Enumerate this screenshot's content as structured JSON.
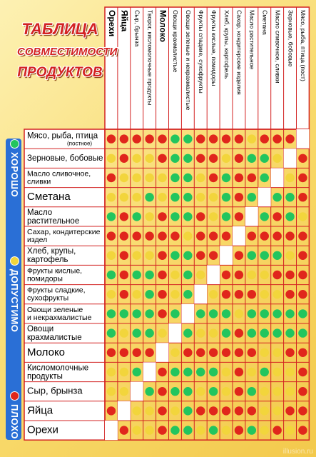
{
  "title_lines": [
    "ТАБЛИЦА",
    "СОВМЕСТИМОСТИ",
    "ПРОДУКТОВ"
  ],
  "legend": [
    {
      "label": "ХОРОШО",
      "color": "#22c55e"
    },
    {
      "label": "ДОПУСТИМО",
      "color": "#f2d53c"
    },
    {
      "label": "ПЛОХО",
      "color": "#e0261c"
    }
  ],
  "colors": {
    "good": "#22c55e",
    "ok": "#f2d53c",
    "bad": "#e0261c",
    "header_red": "#d32222",
    "border": "#d32222"
  },
  "columns": [
    "Орехи",
    "Яйца",
    "Сыр, брынза",
    "Творог, кисломолочные продукты",
    "Молоко",
    "Овощи крахмалистые",
    "Овощи зеленые и некрахмалистые",
    "Фрукты сладкие, сухофрукты",
    "Фрукты кислые, помидоры",
    "Хлеб, крупы, картофель",
    "Сахар, кондитерские изделия",
    "Масло растительное",
    "Сметана",
    "Масло сливочное, сливки",
    "Зерновые, бобовые",
    "Мясо, рыба, птица (пост)"
  ],
  "rows": [
    {
      "label": "Мясо, рыба, птица",
      "sub": "(постное)",
      "cells": [
        "r",
        "r",
        "r",
        "r",
        "r",
        "g",
        "g",
        "r",
        "r",
        "r",
        "r",
        "y",
        "r",
        "r",
        "r",
        "x"
      ]
    },
    {
      "label": "Зерновые, бобовые",
      "sub": "",
      "cells": [
        "y",
        "r",
        "y",
        "y",
        "r",
        "g",
        "g",
        "r",
        "r",
        "y",
        "r",
        "g",
        "g",
        "y",
        "x",
        "r"
      ]
    },
    {
      "label": "Масло сливочное, сливки",
      "sub": "",
      "cells": [
        "r",
        "y",
        "y",
        "y",
        "y",
        "g",
        "g",
        "y",
        "r",
        "g",
        "r",
        "r",
        "g",
        "x",
        "y",
        "r"
      ]
    },
    {
      "label": "Сметана",
      "sub": "",
      "cells": [
        "y",
        "y",
        "y",
        "g",
        "y",
        "g",
        "g",
        "y",
        "y",
        "g",
        "r",
        "g",
        "x",
        "g",
        "g",
        "r"
      ]
    },
    {
      "label": "Масло растительное",
      "sub": "",
      "cells": [
        "g",
        "r",
        "g",
        "y",
        "r",
        "g",
        "g",
        "r",
        "y",
        "g",
        "r",
        "x",
        "g",
        "r",
        "g",
        "y"
      ]
    },
    {
      "label": "Сахар, кондитерские издел",
      "sub": "",
      "cells": [
        "r",
        "r",
        "r",
        "r",
        "r",
        "r",
        "y",
        "r",
        "r",
        "r",
        "x",
        "r",
        "r",
        "r",
        "r",
        "r"
      ]
    },
    {
      "label": "Хлеб, крупы, картофель",
      "sub": "",
      "cells": [
        "y",
        "r",
        "y",
        "y",
        "r",
        "g",
        "g",
        "r",
        "r",
        "x",
        "r",
        "g",
        "g",
        "g",
        "y",
        "r"
      ]
    },
    {
      "label": "Фрукты кислые, помидоры",
      "sub": "",
      "cells": [
        "g",
        "r",
        "g",
        "g",
        "r",
        "y",
        "g",
        "y",
        "x",
        "r",
        "r",
        "y",
        "y",
        "r",
        "r",
        "r"
      ]
    },
    {
      "label": "Фрукты сладкие, сухофрукты",
      "sub": "",
      "cells": [
        "y",
        "r",
        "y",
        "g",
        "r",
        "y",
        "g",
        "x",
        "y",
        "r",
        "r",
        "r",
        "y",
        "y",
        "r",
        "r"
      ]
    },
    {
      "label": "Овощи зеленые и некрахмалистые",
      "sub": "",
      "cells": [
        "g",
        "g",
        "g",
        "g",
        "r",
        "g",
        "x",
        "g",
        "g",
        "g",
        "y",
        "g",
        "g",
        "g",
        "g",
        "g"
      ]
    },
    {
      "label": "Овощи крахмалистые",
      "sub": "",
      "cells": [
        "g",
        "y",
        "g",
        "g",
        "y",
        "x",
        "g",
        "y",
        "y",
        "g",
        "r",
        "g",
        "g",
        "g",
        "g",
        "g"
      ]
    },
    {
      "label": "Молоко",
      "sub": "",
      "cells": [
        "r",
        "r",
        "r",
        "r",
        "x",
        "y",
        "r",
        "r",
        "r",
        "r",
        "r",
        "r",
        "y",
        "y",
        "r",
        "r"
      ]
    },
    {
      "label": "Кисломолочные продукты",
      "sub": "",
      "cells": [
        "y",
        "y",
        "g",
        "x",
        "r",
        "g",
        "g",
        "g",
        "g",
        "y",
        "r",
        "y",
        "g",
        "y",
        "y",
        "r"
      ]
    },
    {
      "label": "Сыр, брынза",
      "sub": "",
      "cells": [
        "y",
        "y",
        "x",
        "g",
        "r",
        "g",
        "g",
        "y",
        "g",
        "y",
        "r",
        "g",
        "y",
        "y",
        "y",
        "r"
      ]
    },
    {
      "label": "Яйца",
      "sub": "",
      "cells": [
        "r",
        "x",
        "y",
        "y",
        "r",
        "y",
        "g",
        "r",
        "r",
        "r",
        "r",
        "r",
        "y",
        "y",
        "r",
        "r"
      ]
    },
    {
      "label": "Орехи",
      "sub": "",
      "cells": [
        "x",
        "r",
        "y",
        "y",
        "r",
        "g",
        "g",
        "y",
        "g",
        "y",
        "r",
        "g",
        "y",
        "r",
        "y",
        "r"
      ]
    }
  ],
  "watermark": "illusion.ru"
}
